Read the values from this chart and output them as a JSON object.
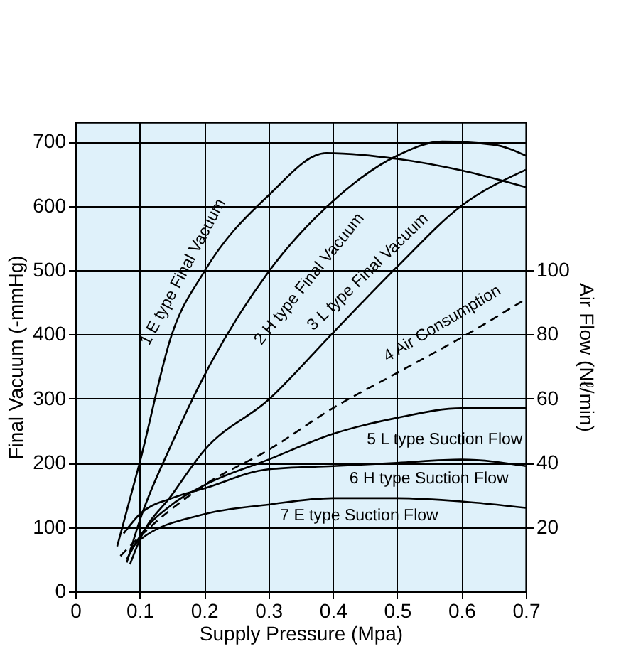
{
  "chart_data": {
    "type": "line",
    "xlabel": "Supply Pressure (Mpa)",
    "ylabel": "Final Vacuum (-mmHg)",
    "y2label": "Air Flow (Nℓ/min)",
    "xlim": [
      0,
      0.7
    ],
    "xticks": [
      0,
      0.1,
      0.2,
      0.3,
      0.4,
      0.5,
      0.6,
      0.7
    ],
    "ylim": [
      0,
      730
    ],
    "yticks": [
      0,
      100,
      200,
      300,
      400,
      500,
      600,
      700
    ],
    "y2lim": [
      0,
      146
    ],
    "y2ticks": [
      20,
      40,
      60,
      80,
      100
    ],
    "grid": true,
    "series": [
      {
        "color": "#000000",
        "line_style": "solid",
        "x": [
          0.065,
          0.1,
          0.15,
          0.2,
          0.3,
          0.39,
          0.5,
          0.6,
          0.7
        ],
        "values": [
          70,
          200,
          400,
          497,
          616,
          682,
          673,
          655,
          629
        ]
      },
      {
        "color": "#000000",
        "line_style": "solid",
        "x": [
          0.08,
          0.1,
          0.15,
          0.2,
          0.3,
          0.4,
          0.5,
          0.57,
          0.65,
          0.7
        ],
        "values": [
          45,
          110,
          230,
          335,
          497,
          607,
          678,
          700,
          695,
          678
        ]
      },
      {
        "color": "#000000",
        "line_style": "solid",
        "x": [
          0.085,
          0.1,
          0.15,
          0.2,
          0.3,
          0.4,
          0.5,
          0.6,
          0.7
        ],
        "values": [
          42,
          80,
          150,
          219,
          298,
          402,
          505,
          600,
          656
        ]
      },
      {
        "color": "#000000",
        "line_style": "dashed",
        "axis": "y2",
        "x": [
          0.07,
          0.1,
          0.2,
          0.3,
          0.4,
          0.5,
          0.6,
          0.7
        ],
        "values": [
          11,
          17,
          33,
          44,
          57,
          68,
          79,
          91
        ]
      },
      {
        "color": "#000000",
        "line_style": "solid",
        "axis": "y2",
        "x": [
          0.08,
          0.1,
          0.15,
          0.2,
          0.3,
          0.4,
          0.5,
          0.6,
          0.7
        ],
        "values": [
          10,
          17,
          27,
          33,
          41,
          49,
          54,
          57,
          57
        ]
      },
      {
        "color": "#000000",
        "line_style": "solid",
        "axis": "y2",
        "x": [
          0.075,
          0.1,
          0.15,
          0.2,
          0.3,
          0.4,
          0.5,
          0.6,
          0.7
        ],
        "values": [
          18,
          24,
          29,
          32,
          38,
          39,
          40,
          41,
          39
        ]
      },
      {
        "color": "#000000",
        "line_style": "solid",
        "axis": "y2",
        "x": [
          0.085,
          0.1,
          0.2,
          0.3,
          0.4,
          0.5,
          0.6,
          0.7
        ],
        "values": [
          13,
          16,
          24,
          27,
          29,
          29,
          28,
          26
        ]
      }
    ],
    "annotations": [
      "1 E type Final Vacuum",
      "2 H type Final Vacuum",
      "3 L type Final Vacuum",
      "4 Air Consumption",
      "5 L type Suction Flow",
      "6 H type Suction Flow",
      "7 E type Suction Flow"
    ]
  }
}
